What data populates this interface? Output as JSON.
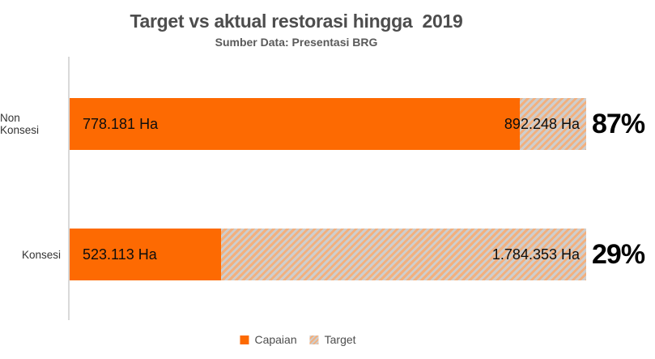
{
  "header": {
    "title": "Target vs aktual restorasi hingga  2019",
    "subtitle": "Sumber Data: Presentasi BRG"
  },
  "chart_data": {
    "type": "bar",
    "orientation": "horizontal",
    "title": "Target vs aktual restorasi hingga  2019",
    "subtitle": "Sumber Data: Presentasi BRG",
    "categories": [
      "Non Konsesi",
      "Konsesi"
    ],
    "series": [
      {
        "name": "Capaian",
        "values": [
          778181,
          523113
        ]
      },
      {
        "name": "Target",
        "values": [
          892248,
          1784353
        ]
      }
    ],
    "percent_of_target": [
      87,
      29
    ],
    "unit": "Ha",
    "grid": false,
    "legend_position": "bottom",
    "note": "each bar is normalized to its own target (full width = 100% of target)"
  },
  "rows": [
    {
      "label": "Non Konsesi",
      "capaian_label": "778.181 Ha",
      "target_label": "892.248 Ha",
      "percent": "87%",
      "fill_pct": 87.2
    },
    {
      "label": "Konsesi",
      "capaian_label": "523.113 Ha",
      "target_label": "1.784.353 Ha",
      "percent": "29%",
      "fill_pct": 29.3
    }
  ],
  "legend": {
    "capaian": "Capaian",
    "target": "Target"
  },
  "colors": {
    "capaian_orange": "#fd6a02",
    "target_hatch_peach": "#f2b07e",
    "target_hatch_gray": "#cecece",
    "axis_line": "#d9d9d9",
    "title_text": "#4d4d4d",
    "percent_text": "#000000"
  }
}
